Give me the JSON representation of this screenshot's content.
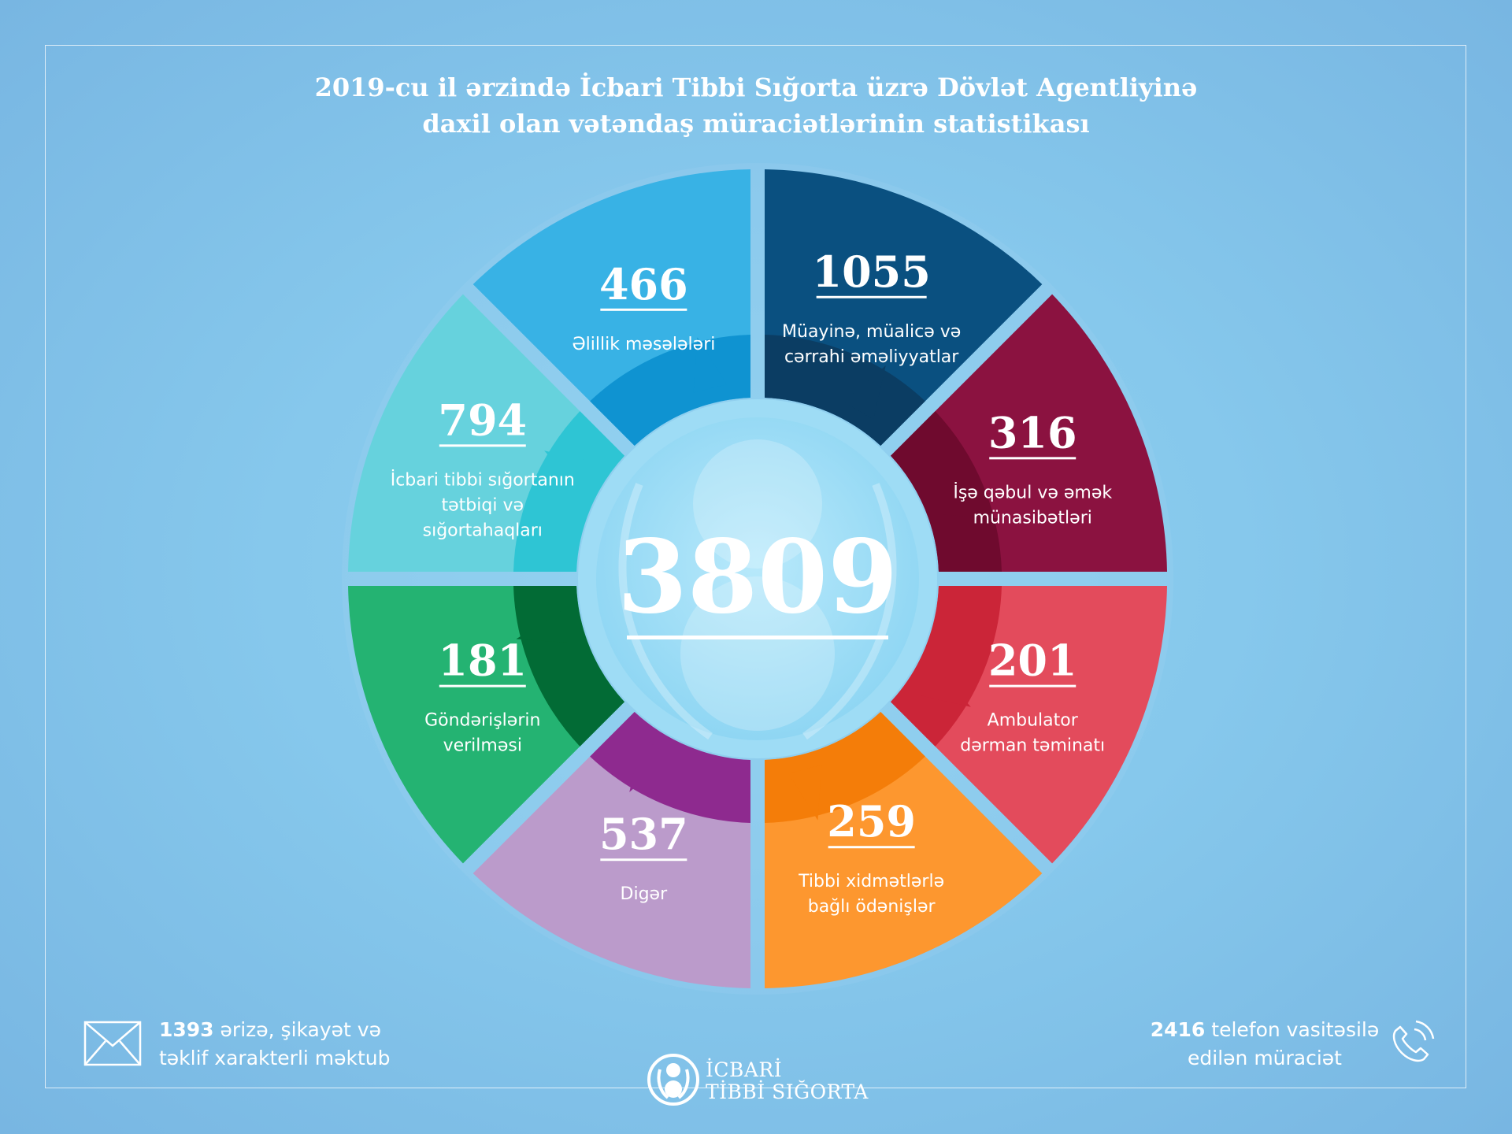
{
  "header": {
    "title_line1": "2019-cu il ərzində İcbari Tibbi Sığorta üzrə Dövlət Agentliyinə",
    "title_line2": "daxil olan vətəndaş müraciətlərinin statistikası"
  },
  "chart_data": {
    "type": "pie",
    "total": "3809",
    "categories": [
      {
        "value": 1055,
        "label_lines": [
          "Müayinə, müalicə və",
          "cərrahi əməliyyatlar"
        ],
        "color": "#0a5080",
        "inner_color": "#0b3d63"
      },
      {
        "value": 316,
        "label_lines": [
          "İşə qəbul və əmək",
          "münasibətləri"
        ],
        "color": "#8b1240",
        "inner_color": "#6f0a2e"
      },
      {
        "value": 201,
        "label_lines": [
          "Ambulator",
          "dərman təminatı"
        ],
        "color": "#e34b5c",
        "inner_color": "#cb2538"
      },
      {
        "value": 259,
        "label_lines": [
          "Tibbi xidmətlərlə",
          "bağlı ödənişlər"
        ],
        "color": "#fd972f",
        "inner_color": "#f47d09"
      },
      {
        "value": 537,
        "label_lines": [
          "Digər"
        ],
        "color": "#bb9bcb",
        "inner_color": "#8e2a8f"
      },
      {
        "value": 181,
        "label_lines": [
          "Göndərişlərin",
          "verilməsi"
        ],
        "color": "#24b372",
        "inner_color": "#026b35"
      },
      {
        "value": 794,
        "label_lines": [
          "İcbari tibbi sığortanın",
          "tətbiqi və",
          "sığortahaqları"
        ],
        "color": "#66d2dd",
        "inner_color": "#2ec5d4"
      },
      {
        "value": 466,
        "label_lines": [
          "Əlillik məsələləri"
        ],
        "color": "#38b2e5",
        "inner_color": "#0f93d1"
      }
    ]
  },
  "footer": {
    "mail_count": "1393",
    "mail_text_line1": " ərizə, şikayət və",
    "mail_text_line2": "təklif xarakterli məktub",
    "phone_count": "2416",
    "phone_text_line1": " telefon vasitəsilə",
    "phone_text_line2": "edilən müraciət",
    "mail_icon": "envelope-icon",
    "phone_icon": "phone-icon",
    "logo_line1": "İCBARİ",
    "logo_line2": "TİBBİ SIĞORTA"
  }
}
